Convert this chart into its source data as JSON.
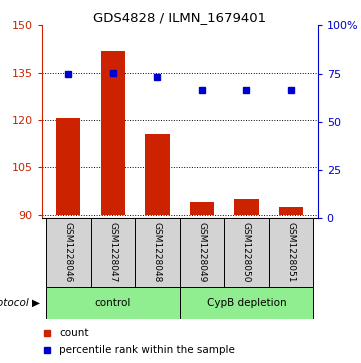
{
  "title": "GDS4828 / ILMN_1679401",
  "samples": [
    "GSM1228046",
    "GSM1228047",
    "GSM1228048",
    "GSM1228049",
    "GSM1228050",
    "GSM1228051"
  ],
  "counts": [
    120.5,
    142.0,
    115.5,
    94.0,
    95.0,
    92.5
  ],
  "percentiles": [
    75.0,
    75.5,
    73.0,
    66.5,
    66.5,
    66.5
  ],
  "ylim_left": [
    89,
    150
  ],
  "ylim_right": [
    0,
    100
  ],
  "yticks_left": [
    90,
    105,
    120,
    135,
    150
  ],
  "yticks_right": [
    0,
    25,
    50,
    75,
    100
  ],
  "ytick_labels_right": [
    "0",
    "25",
    "50",
    "75",
    "100%"
  ],
  "bar_color": "#cc2200",
  "dot_color": "#0000cc",
  "group_labels": [
    "control",
    "CypB depletion"
  ],
  "group_colors": [
    "#90ee90",
    "#3cb043"
  ],
  "sample_bg_color": "#d3d3d3",
  "legend_count_label": "count",
  "legend_percentile_label": "percentile rank within the sample",
  "protocol_label": "protocol",
  "bar_bottom": 90
}
